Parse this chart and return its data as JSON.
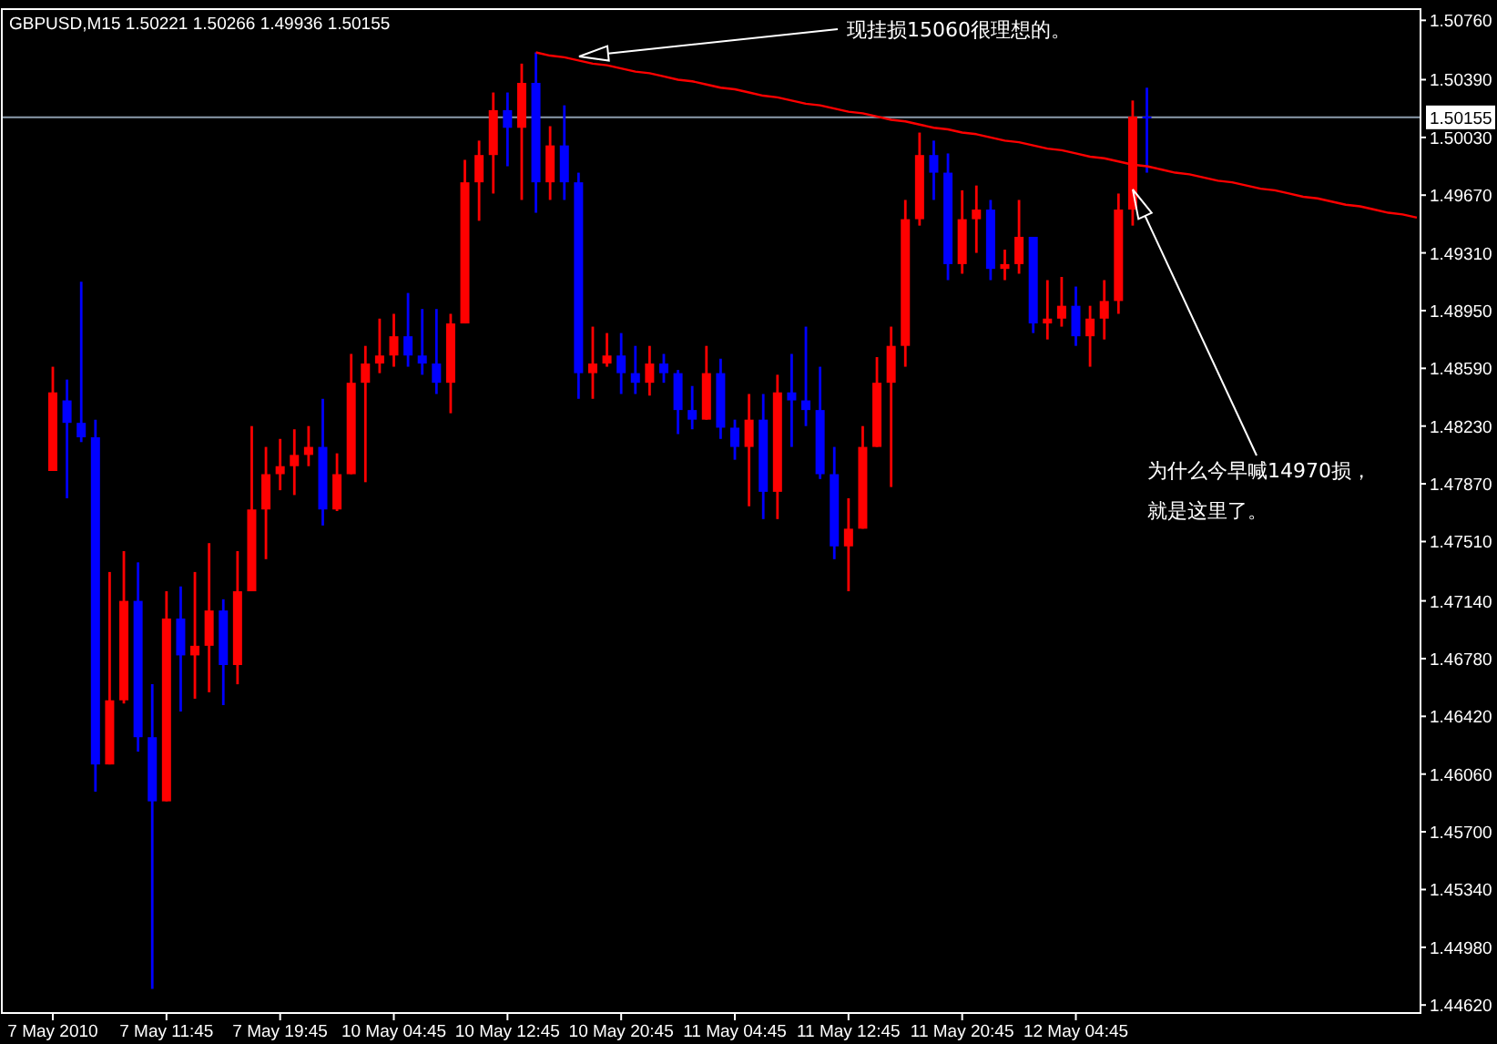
{
  "chart_data": {
    "type": "candlestick",
    "title": "GBPUSD,M15  1.50221 1.50266 1.49936 1.50155",
    "categories": [
      "7 May 2010",
      null,
      null,
      null,
      null,
      null,
      null,
      null,
      "7 May 11:45",
      null,
      null,
      null,
      null,
      null,
      null,
      null,
      "7 May 19:45",
      null,
      null,
      null,
      null,
      null,
      null,
      null,
      "10 May 04:45",
      null,
      null,
      null,
      null,
      null,
      null,
      null,
      "10 May 12:45",
      null,
      null,
      null,
      null,
      null,
      null,
      null,
      "10 May 20:45",
      null,
      null,
      null,
      null,
      null,
      null,
      null,
      "11 May 04:45",
      null,
      null,
      null,
      null,
      null,
      null,
      null,
      "11 May 12:45",
      null,
      null,
      null,
      null,
      null,
      null,
      null,
      "11 May 20:45",
      null,
      null,
      null,
      null,
      null,
      null,
      null,
      "12 May 04:45",
      null,
      null,
      null,
      null,
      null,
      null,
      null,
      null,
      null,
      null,
      null,
      null,
      null,
      null,
      null,
      null,
      null,
      null,
      null,
      null,
      null,
      null,
      null,
      null
    ],
    "ohlc": [
      [
        1.4795,
        1.486,
        1.4795,
        1.4844
      ],
      [
        1.4839,
        1.4852,
        1.4778,
        1.4825
      ],
      [
        1.4825,
        1.4913,
        1.4813,
        1.4816
      ],
      [
        1.4816,
        1.4827,
        1.4595,
        1.4612
      ],
      [
        1.4612,
        1.4732,
        1.4612,
        1.4652
      ],
      [
        1.4652,
        1.4745,
        1.465,
        1.4714
      ],
      [
        1.4714,
        1.4738,
        1.462,
        1.4629
      ],
      [
        1.4629,
        1.4662,
        1.4472,
        1.4589
      ],
      [
        1.4589,
        1.472,
        1.4589,
        1.4703
      ],
      [
        1.4703,
        1.4723,
        1.4645,
        1.468
      ],
      [
        1.468,
        1.4732,
        1.4653,
        1.4686
      ],
      [
        1.4686,
        1.475,
        1.4657,
        1.4708
      ],
      [
        1.4708,
        1.4715,
        1.4649,
        1.4674
      ],
      [
        1.4674,
        1.4745,
        1.4662,
        1.472
      ],
      [
        1.472,
        1.4823,
        1.472,
        1.4771
      ],
      [
        1.4771,
        1.481,
        1.474,
        1.4793
      ],
      [
        1.4793,
        1.4815,
        1.4783,
        1.4798
      ],
      [
        1.4798,
        1.4821,
        1.478,
        1.4805
      ],
      [
        1.4805,
        1.4823,
        1.4798,
        1.481
      ],
      [
        1.481,
        1.484,
        1.4761,
        1.4771
      ],
      [
        1.4771,
        1.4806,
        1.477,
        1.4793
      ],
      [
        1.4793,
        1.4868,
        1.4793,
        1.485
      ],
      [
        1.485,
        1.4873,
        1.4788,
        1.4862
      ],
      [
        1.4862,
        1.489,
        1.4856,
        1.4867
      ],
      [
        1.4867,
        1.4893,
        1.486,
        1.4879
      ],
      [
        1.4879,
        1.4906,
        1.486,
        1.4867
      ],
      [
        1.4867,
        1.4896,
        1.4855,
        1.4862
      ],
      [
        1.4862,
        1.4896,
        1.4843,
        1.485
      ],
      [
        1.485,
        1.4893,
        1.4831,
        1.4887
      ],
      [
        1.4887,
        1.4989,
        1.4887,
        1.4975
      ],
      [
        1.4975,
        1.5001,
        1.4951,
        1.4992
      ],
      [
        1.4992,
        1.5031,
        1.4968,
        1.502
      ],
      [
        1.502,
        1.5031,
        1.4985,
        1.5009
      ],
      [
        1.5009,
        1.5049,
        1.4964,
        1.5037
      ],
      [
        1.5037,
        1.5056,
        1.4956,
        1.4975
      ],
      [
        1.4975,
        1.501,
        1.4964,
        1.4998
      ],
      [
        1.4998,
        1.5023,
        1.4964,
        1.4975
      ],
      [
        1.4975,
        1.4981,
        1.484,
        1.4856
      ],
      [
        1.4856,
        1.4885,
        1.484,
        1.4862
      ],
      [
        1.4862,
        1.4881,
        1.486,
        1.4867
      ],
      [
        1.4867,
        1.4881,
        1.4843,
        1.4856
      ],
      [
        1.4856,
        1.4873,
        1.4843,
        1.485
      ],
      [
        1.485,
        1.4873,
        1.4842,
        1.4862
      ],
      [
        1.4862,
        1.4868,
        1.485,
        1.4856
      ],
      [
        1.4856,
        1.4858,
        1.4818,
        1.4833
      ],
      [
        1.4833,
        1.4848,
        1.4821,
        1.4827
      ],
      [
        1.4827,
        1.4873,
        1.4827,
        1.4856
      ],
      [
        1.4856,
        1.4865,
        1.4815,
        1.4822
      ],
      [
        1.4822,
        1.4827,
        1.4802,
        1.481
      ],
      [
        1.481,
        1.4843,
        1.4773,
        1.4827
      ],
      [
        1.4827,
        1.4843,
        1.4765,
        1.4782
      ],
      [
        1.4782,
        1.4855,
        1.4765,
        1.4844
      ],
      [
        1.4844,
        1.4868,
        1.481,
        1.4839
      ],
      [
        1.4839,
        1.4885,
        1.4823,
        1.4833
      ],
      [
        1.4833,
        1.486,
        1.479,
        1.4793
      ],
      [
        1.4793,
        1.481,
        1.474,
        1.4748
      ],
      [
        1.4748,
        1.4778,
        1.472,
        1.4759
      ],
      [
        1.4759,
        1.4823,
        1.4759,
        1.481
      ],
      [
        1.481,
        1.4866,
        1.481,
        1.485
      ],
      [
        1.485,
        1.4885,
        1.4785,
        1.4873
      ],
      [
        1.4873,
        1.4964,
        1.486,
        1.4952
      ],
      [
        1.4952,
        1.5006,
        1.4948,
        1.4992
      ],
      [
        1.4992,
        1.5001,
        1.4964,
        1.4981
      ],
      [
        1.4981,
        1.4993,
        1.4914,
        1.4924
      ],
      [
        1.4924,
        1.497,
        1.4918,
        1.4952
      ],
      [
        1.4952,
        1.4973,
        1.4931,
        1.4958
      ],
      [
        1.4958,
        1.4964,
        1.4914,
        1.4921
      ],
      [
        1.4921,
        1.4933,
        1.4914,
        1.4924
      ],
      [
        1.4924,
        1.4964,
        1.4918,
        1.4941
      ],
      [
        1.4941,
        1.4941,
        1.4881,
        1.4887
      ],
      [
        1.4887,
        1.4914,
        1.4877,
        1.489
      ],
      [
        1.489,
        1.4916,
        1.4885,
        1.4898
      ],
      [
        1.4898,
        1.491,
        1.4873,
        1.4879
      ],
      [
        1.4879,
        1.4898,
        1.486,
        1.489
      ],
      [
        1.489,
        1.4914,
        1.4877,
        1.4901
      ],
      [
        1.4901,
        1.4968,
        1.4893,
        1.4958
      ],
      [
        1.4958,
        1.5026,
        1.4948,
        1.5016
      ],
      [
        1.5016,
        1.5034,
        1.4981,
        1.50155
      ],
      null,
      null,
      null,
      null,
      null,
      null,
      null,
      null,
      null,
      null,
      null,
      null,
      null,
      null,
      null,
      null,
      null,
      null,
      null
    ],
    "colors": [
      "#ff0000",
      "#0000ff",
      "#0000ff",
      "#0000ff",
      "#ff0000",
      "#ff0000",
      "#0000ff",
      "#0000ff",
      "#ff0000",
      "#0000ff",
      "#ff0000",
      "#ff0000",
      "#0000ff",
      "#ff0000",
      "#ff0000",
      "#ff0000",
      "#ff0000",
      "#ff0000",
      "#ff0000",
      "#0000ff",
      "#ff0000",
      "#ff0000",
      "#ff0000",
      "#ff0000",
      "#ff0000",
      "#0000ff",
      "#0000ff",
      "#0000ff",
      "#ff0000",
      "#ff0000",
      "#ff0000",
      "#ff0000",
      "#0000ff",
      "#ff0000",
      "#0000ff",
      "#ff0000",
      "#0000ff",
      "#0000ff",
      "#ff0000",
      "#ff0000",
      "#0000ff",
      "#0000ff",
      "#ff0000",
      "#0000ff",
      "#0000ff",
      "#0000ff",
      "#ff0000",
      "#0000ff",
      "#0000ff",
      "#ff0000",
      "#0000ff",
      "#ff0000",
      "#0000ff",
      "#0000ff",
      "#0000ff",
      "#0000ff",
      "#ff0000",
      "#ff0000",
      "#ff0000",
      "#ff0000",
      "#ff0000",
      "#ff0000",
      "#0000ff",
      "#0000ff",
      "#ff0000",
      "#ff0000",
      "#0000ff",
      "#ff0000",
      "#ff0000",
      "#0000ff",
      "#ff0000",
      "#ff0000",
      "#0000ff",
      "#ff0000",
      "#ff0000",
      "#ff0000",
      "#ff0000",
      "#0000ff",
      null,
      null,
      null,
      null,
      null,
      null,
      null,
      null,
      null,
      null,
      null,
      null,
      null,
      null,
      null,
      null,
      null,
      null,
      null
    ],
    "series": [
      {
        "type": "line",
        "color": "#ff0000",
        "values": [
          null,
          null,
          null,
          null,
          null,
          null,
          null,
          null,
          null,
          null,
          null,
          null,
          null,
          null,
          null,
          null,
          null,
          null,
          null,
          null,
          null,
          null,
          null,
          null,
          null,
          null,
          null,
          null,
          null,
          null,
          null,
          null,
          null,
          null,
          1.5056,
          1.5054,
          1.5053,
          1.5051,
          1.5049,
          1.5048,
          1.5046,
          1.5044,
          1.5043,
          1.5041,
          1.5039,
          1.5038,
          1.5036,
          1.5034,
          1.5033,
          1.5031,
          1.5029,
          1.5028,
          1.5026,
          1.5024,
          1.5023,
          1.5021,
          1.5019,
          1.5018,
          1.5016,
          1.5014,
          1.5013,
          1.5011,
          1.5009,
          1.5008,
          1.5006,
          1.5005,
          1.5003,
          1.5001,
          1.5,
          1.4998,
          1.4996,
          1.4995,
          1.4993,
          1.4991,
          1.499,
          1.4988,
          1.4986,
          1.4985,
          1.4983,
          1.4981,
          1.498,
          1.4978,
          1.4976,
          1.4975,
          1.4973,
          1.4971,
          1.497,
          1.4968,
          1.4966,
          1.4965,
          1.4963,
          1.4961,
          1.496,
          1.4958,
          1.4956,
          1.4955,
          1.4953
        ]
      }
    ],
    "ylim": [
      1.4457,
      1.5083
    ],
    "yticks": [
      {
        "value": 1.5076,
        "label": "1.50760"
      },
      {
        "value": 1.5039,
        "label": "1.50390"
      },
      {
        "value": 1.5003,
        "label": "1.50030"
      },
      {
        "value": 1.4967,
        "label": "1.49670"
      },
      {
        "value": 1.4931,
        "label": "1.49310"
      },
      {
        "value": 1.4895,
        "label": "1.48950"
      },
      {
        "value": 1.4859,
        "label": "1.48590"
      },
      {
        "value": 1.4823,
        "label": "1.48230"
      },
      {
        "value": 1.4787,
        "label": "1.47870"
      },
      {
        "value": 1.4751,
        "label": "1.47510"
      },
      {
        "value": 1.4714,
        "label": "1.47140"
      },
      {
        "value": 1.4678,
        "label": "1.46780"
      },
      {
        "value": 1.4642,
        "label": "1.46420"
      },
      {
        "value": 1.4606,
        "label": "1.46060"
      },
      {
        "value": 1.457,
        "label": "1.45700"
      },
      {
        "value": 1.4534,
        "label": "1.45340"
      },
      {
        "value": 1.4498,
        "label": "1.44980"
      },
      {
        "value": 1.4462,
        "label": "1.44620"
      }
    ],
    "ref_lines": [
      {
        "axis": "y",
        "value": 1.50155,
        "label": "1.50155",
        "color": "#8c9cac"
      }
    ],
    "annotations": [
      "现挂损15060很理想的。",
      "为什么今早喊14970损，",
      "就是这里了。"
    ],
    "grid": false
  }
}
